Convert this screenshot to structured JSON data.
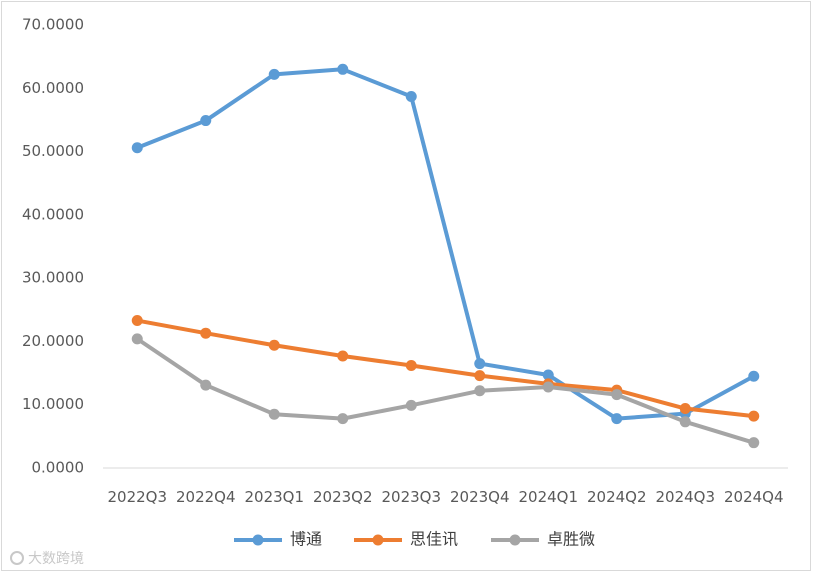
{
  "chart_data": {
    "type": "line",
    "categories": [
      "2022Q3",
      "2022Q4",
      "2023Q1",
      "2023Q2",
      "2023Q3",
      "2023Q4",
      "2024Q1",
      "2024Q2",
      "2024Q3",
      "2024Q4"
    ],
    "series": [
      {
        "name": "博通",
        "color": "#5b9bd5",
        "values": [
          50.6,
          54.9,
          62.2,
          63.0,
          58.7,
          16.5,
          14.7,
          7.8,
          8.6,
          14.5
        ]
      },
      {
        "name": "思佳讯",
        "color": "#ed7d31",
        "values": [
          23.3,
          21.3,
          19.4,
          17.7,
          16.2,
          14.6,
          13.3,
          12.3,
          9.4,
          8.2
        ]
      },
      {
        "name": "卓胜微",
        "color": "#a5a5a5",
        "values": [
          20.4,
          13.1,
          8.5,
          7.8,
          9.9,
          12.2,
          12.8,
          11.6,
          7.3,
          4.0
        ]
      }
    ],
    "yticks": [
      "0.0000",
      "10.0000",
      "20.0000",
      "30.0000",
      "40.0000",
      "50.0000",
      "60.0000",
      "70.0000"
    ],
    "ylim": [
      0,
      70
    ],
    "grid": false,
    "legend_position": "bottom"
  },
  "watermark": {
    "text": "大数跨境"
  }
}
